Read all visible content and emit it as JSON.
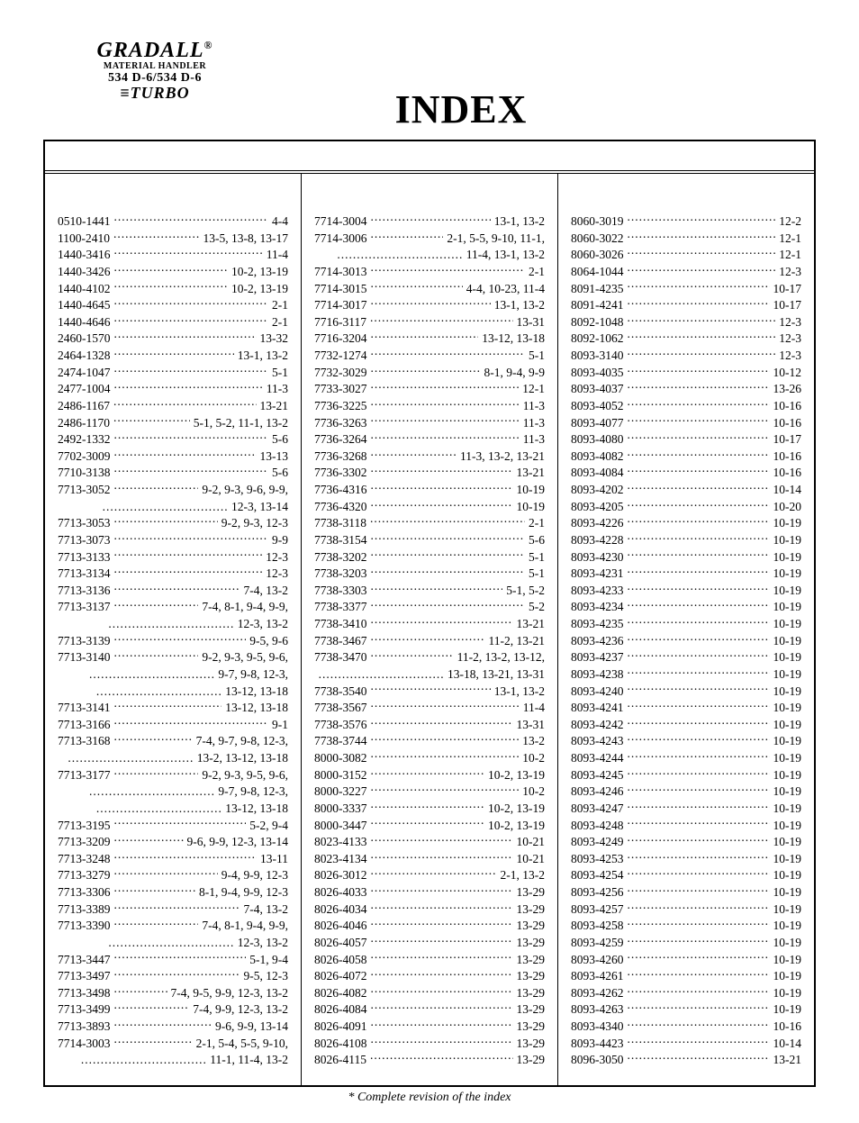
{
  "colors": {
    "text": "#000000",
    "bg": "#ffffff",
    "border": "#000000"
  },
  "logo": {
    "line1": "GRADALL",
    "reg": "®",
    "line2": "MATERIAL HANDLER",
    "line3": "534 D-6/534 D-6",
    "line4_prefix": "≡",
    "line4": "TURBO"
  },
  "title": "INDEX",
  "footnote": "* Complete revision of the index",
  "layout": {
    "columns": 3,
    "fontsize_pt": 10,
    "title_fontsize_pt": 32
  },
  "columns": [
    [
      {
        "k": "0510-1441",
        "v": "4-4"
      },
      {
        "k": "1100-2410",
        "v": "13-5, 13-8, 13-17"
      },
      {
        "k": "1440-3416",
        "v": "11-4"
      },
      {
        "k": "1440-3426",
        "v": "10-2, 13-19"
      },
      {
        "k": "1440-4102",
        "v": "10-2, 13-19"
      },
      {
        "k": "1440-4645",
        "v": "2-1"
      },
      {
        "k": "1440-4646",
        "v": "2-1"
      },
      {
        "k": "2460-1570",
        "v": "13-32"
      },
      {
        "k": "2464-1328",
        "v": "13-1, 13-2"
      },
      {
        "k": "2474-1047",
        "v": "5-1"
      },
      {
        "k": "2477-1004",
        "v": "11-3"
      },
      {
        "k": "2486-1167",
        "v": "13-21"
      },
      {
        "k": "2486-1170",
        "v": "5-1, 5-2, 11-1, 13-2"
      },
      {
        "k": "2492-1332",
        "v": "5-6"
      },
      {
        "k": "7702-3009",
        "v": "13-13"
      },
      {
        "k": "7710-3138",
        "v": "5-6"
      },
      {
        "k": "7713-3052",
        "v": "9-2, 9-3, 9-6, 9-9,"
      },
      {
        "cont": "12-3, 13-14"
      },
      {
        "k": "7713-3053",
        "v": "9-2, 9-3, 12-3"
      },
      {
        "k": "7713-3073",
        "v": "9-9"
      },
      {
        "k": "7713-3133",
        "v": "12-3"
      },
      {
        "k": "7713-3134",
        "v": "12-3"
      },
      {
        "k": "7713-3136",
        "v": "7-4, 13-2"
      },
      {
        "k": "7713-3137",
        "v": "7-4, 8-1, 9-4, 9-9,"
      },
      {
        "cont": "12-3, 13-2"
      },
      {
        "k": "7713-3139",
        "v": "9-5, 9-6"
      },
      {
        "k": "7713-3140",
        "v": "9-2, 9-3, 9-5, 9-6,"
      },
      {
        "cont": "9-7, 9-8, 12-3,"
      },
      {
        "cont": "13-12, 13-18"
      },
      {
        "k": "7713-3141",
        "v": "13-12, 13-18"
      },
      {
        "k": "7713-3166",
        "v": "9-1"
      },
      {
        "k": "7713-3168",
        "v": "7-4, 9-7, 9-8, 12-3,"
      },
      {
        "cont": "13-2, 13-12, 13-18"
      },
      {
        "k": "7713-3177",
        "v": "9-2, 9-3, 9-5, 9-6,"
      },
      {
        "cont": "9-7, 9-8, 12-3,"
      },
      {
        "cont": "13-12, 13-18"
      },
      {
        "k": "7713-3195",
        "v": "5-2, 9-4"
      },
      {
        "k": "7713-3209",
        "v": "9-6, 9-9, 12-3, 13-14"
      },
      {
        "k": "7713-3248",
        "v": "13-11"
      },
      {
        "k": "7713-3279",
        "v": "9-4, 9-9, 12-3"
      },
      {
        "k": "7713-3306",
        "v": "8-1, 9-4, 9-9, 12-3"
      },
      {
        "k": "7713-3389",
        "v": "7-4, 13-2"
      },
      {
        "k": "7713-3390",
        "v": "7-4, 8-1, 9-4, 9-9,"
      },
      {
        "cont": "12-3, 13-2"
      },
      {
        "k": "7713-3447",
        "v": "5-1, 9-4"
      },
      {
        "k": "7713-3497",
        "v": "9-5, 12-3"
      },
      {
        "k": "7713-3498",
        "v": "7-4, 9-5, 9-9, 12-3, 13-2"
      },
      {
        "k": "7713-3499",
        "v": "7-4, 9-9, 12-3, 13-2"
      },
      {
        "k": "7713-3893",
        "v": "9-6, 9-9, 13-14"
      },
      {
        "k": "7714-3003",
        "v": "2-1, 5-4, 5-5, 9-10,"
      },
      {
        "cont": "11-1, 11-4, 13-2"
      }
    ],
    [
      {
        "k": "7714-3004",
        "v": "13-1, 13-2"
      },
      {
        "k": "7714-3006",
        "v": "2-1, 5-5, 9-10, 11-1,"
      },
      {
        "cont": "11-4, 13-1, 13-2"
      },
      {
        "k": "7714-3013",
        "v": "2-1"
      },
      {
        "k": "7714-3015",
        "v": "4-4, 10-23, 11-4"
      },
      {
        "k": "7714-3017",
        "v": "13-1, 13-2"
      },
      {
        "k": "7716-3117",
        "v": "13-31"
      },
      {
        "k": "7716-3204",
        "v": "13-12, 13-18"
      },
      {
        "k": "7732-1274",
        "v": "5-1"
      },
      {
        "k": "7732-3029",
        "v": "8-1, 9-4, 9-9"
      },
      {
        "k": "7733-3027",
        "v": "12-1"
      },
      {
        "k": "7736-3225",
        "v": "11-3"
      },
      {
        "k": "7736-3263",
        "v": "11-3"
      },
      {
        "k": "7736-3264",
        "v": "11-3"
      },
      {
        "k": "7736-3268",
        "v": "11-3, 13-2, 13-21"
      },
      {
        "k": "7736-3302",
        "v": "13-21"
      },
      {
        "k": "7736-4316",
        "v": "10-19"
      },
      {
        "k": "7736-4320",
        "v": "10-19"
      },
      {
        "k": "7738-3118",
        "v": "2-1"
      },
      {
        "k": "7738-3154",
        "v": "5-6"
      },
      {
        "k": "7738-3202",
        "v": "5-1"
      },
      {
        "k": "7738-3203",
        "v": "5-1"
      },
      {
        "k": "7738-3303",
        "v": "5-1, 5-2"
      },
      {
        "k": "7738-3377",
        "v": "5-2"
      },
      {
        "k": "7738-3410",
        "v": "13-21"
      },
      {
        "k": "7738-3467",
        "v": "11-2, 13-21"
      },
      {
        "k": "7738-3470",
        "v": "11-2, 13-2, 13-12,"
      },
      {
        "cont": "13-18, 13-21, 13-31"
      },
      {
        "k": "7738-3540",
        "v": "13-1, 13-2"
      },
      {
        "k": "7738-3567",
        "v": "11-4"
      },
      {
        "k": "7738-3576",
        "v": "13-31"
      },
      {
        "k": "7738-3744",
        "v": "13-2"
      },
      {
        "k": "8000-3082",
        "v": "10-2"
      },
      {
        "k": "8000-3152",
        "v": "10-2, 13-19"
      },
      {
        "k": "8000-3227",
        "v": "10-2"
      },
      {
        "k": "8000-3337",
        "v": "10-2, 13-19"
      },
      {
        "k": "8000-3447",
        "v": "10-2, 13-19"
      },
      {
        "k": "8023-4133",
        "v": "10-21"
      },
      {
        "k": "8023-4134",
        "v": "10-21"
      },
      {
        "k": "8026-3012",
        "v": "2-1, 13-2"
      },
      {
        "k": "8026-4033",
        "v": "13-29"
      },
      {
        "k": "8026-4034",
        "v": "13-29"
      },
      {
        "k": "8026-4046",
        "v": "13-29"
      },
      {
        "k": "8026-4057",
        "v": "13-29"
      },
      {
        "k": "8026-4058",
        "v": "13-29"
      },
      {
        "k": "8026-4072",
        "v": "13-29"
      },
      {
        "k": "8026-4082",
        "v": "13-29"
      },
      {
        "k": "8026-4084",
        "v": "13-29"
      },
      {
        "k": "8026-4091",
        "v": "13-29"
      },
      {
        "k": "8026-4108",
        "v": "13-29"
      },
      {
        "k": "8026-4115",
        "v": "13-29"
      }
    ],
    [
      {
        "k": "8060-3019",
        "v": "12-2"
      },
      {
        "k": "8060-3022",
        "v": "12-1"
      },
      {
        "k": "8060-3026",
        "v": "12-1"
      },
      {
        "k": "8064-1044",
        "v": "12-3"
      },
      {
        "k": "8091-4235",
        "v": "10-17"
      },
      {
        "k": "8091-4241",
        "v": "10-17"
      },
      {
        "k": "8092-1048",
        "v": "12-3"
      },
      {
        "k": "8092-1062",
        "v": "12-3"
      },
      {
        "k": "8093-3140",
        "v": "12-3"
      },
      {
        "k": "8093-4035",
        "v": "10-12"
      },
      {
        "k": "8093-4037",
        "v": "13-26"
      },
      {
        "k": "8093-4052",
        "v": "10-16"
      },
      {
        "k": "8093-4077",
        "v": "10-16"
      },
      {
        "k": "8093-4080",
        "v": "10-17"
      },
      {
        "k": "8093-4082",
        "v": "10-16"
      },
      {
        "k": "8093-4084",
        "v": "10-16"
      },
      {
        "k": "8093-4202",
        "v": "10-14"
      },
      {
        "k": "8093-4205",
        "v": "10-20"
      },
      {
        "k": "8093-4226",
        "v": "10-19"
      },
      {
        "k": "8093-4228",
        "v": "10-19"
      },
      {
        "k": "8093-4230",
        "v": "10-19"
      },
      {
        "k": "8093-4231",
        "v": "10-19"
      },
      {
        "k": "8093-4233",
        "v": "10-19"
      },
      {
        "k": "8093-4234",
        "v": "10-19"
      },
      {
        "k": "8093-4235",
        "v": "10-19"
      },
      {
        "k": "8093-4236",
        "v": "10-19"
      },
      {
        "k": "8093-4237",
        "v": "10-19"
      },
      {
        "k": "8093-4238",
        "v": "10-19"
      },
      {
        "k": "8093-4240",
        "v": "10-19"
      },
      {
        "k": "8093-4241",
        "v": "10-19"
      },
      {
        "k": "8093-4242",
        "v": "10-19"
      },
      {
        "k": "8093-4243",
        "v": "10-19"
      },
      {
        "k": "8093-4244",
        "v": "10-19"
      },
      {
        "k": "8093-4245",
        "v": "10-19"
      },
      {
        "k": "8093-4246",
        "v": "10-19"
      },
      {
        "k": "8093-4247",
        "v": "10-19"
      },
      {
        "k": "8093-4248",
        "v": "10-19"
      },
      {
        "k": "8093-4249",
        "v": "10-19"
      },
      {
        "k": "8093-4253",
        "v": "10-19"
      },
      {
        "k": "8093-4254",
        "v": "10-19"
      },
      {
        "k": "8093-4256",
        "v": "10-19"
      },
      {
        "k": "8093-4257",
        "v": "10-19"
      },
      {
        "k": "8093-4258",
        "v": "10-19"
      },
      {
        "k": "8093-4259",
        "v": "10-19"
      },
      {
        "k": "8093-4260",
        "v": "10-19"
      },
      {
        "k": "8093-4261",
        "v": "10-19"
      },
      {
        "k": "8093-4262",
        "v": "10-19"
      },
      {
        "k": "8093-4263",
        "v": "10-19"
      },
      {
        "k": "8093-4340",
        "v": "10-16"
      },
      {
        "k": "8093-4423",
        "v": "10-14"
      },
      {
        "k": "8096-3050",
        "v": "13-21"
      }
    ]
  ]
}
